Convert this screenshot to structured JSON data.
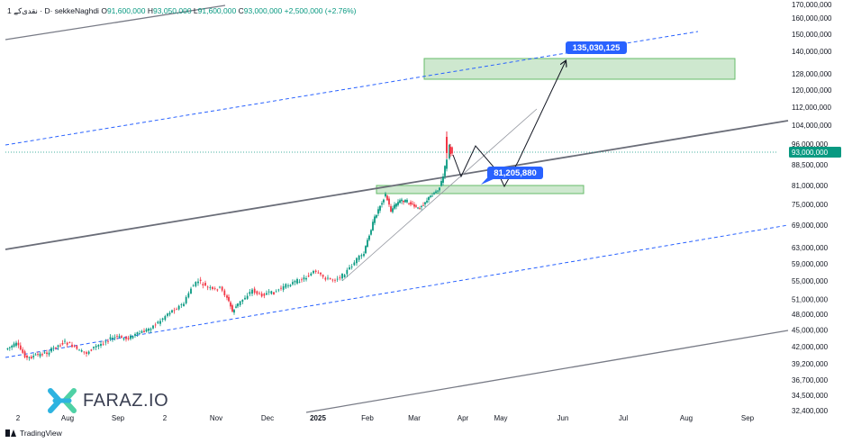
{
  "header": {
    "symbol": "1 نقدی‌کے ‎· D· sekkeNaghdi",
    "o_label": "O",
    "o_value": "91,600,000",
    "h_label": "H",
    "h_value": "93,050,000",
    "l_label": "L",
    "l_value": "91,600,000",
    "c_label": "C",
    "c_value": "93,000,000",
    "change": "+2,500,000 (+2.76%)"
  },
  "footer": {
    "brand": "TradingView"
  },
  "watermark": {
    "text": "FARAZ.IO"
  },
  "chart_data": {
    "type": "candlestick",
    "colors": {
      "up": "#089981",
      "down": "#f23645",
      "zone": "#a5d6a7",
      "label": "#2962ff",
      "channel": "#787b86",
      "dashed": "#2962ff"
    },
    "y_axis": {
      "ticks": [
        32400000,
        34500000,
        36700000,
        39200000,
        42000000,
        45000000,
        48000000,
        51000000,
        55000000,
        59000000,
        63000000,
        69000000,
        75000000,
        81000000,
        88500000,
        96000000,
        104000000,
        112000000,
        120000000,
        128000000,
        140000000,
        150000000,
        160000000,
        170000000
      ],
      "labels": [
        "32,400,000",
        "34,500,000",
        "36,700,000",
        "39,200,000",
        "42,000,000",
        "45,000,000",
        "48,000,000",
        "51,000,000",
        "55,000,000",
        "59,000,000",
        "63,000,000",
        "69,000,000",
        "75,000,000",
        "81,000,000",
        "88,500,000",
        "96,000,000",
        "104,000,000",
        "112,000,000",
        "120,000,000",
        "128,000,000",
        "140,000,000",
        "150,000,000",
        "160,000,000",
        "170,000,000"
      ],
      "last_price": 93000000,
      "last_price_label": "93,000,000"
    },
    "x_axis": {
      "labels": [
        "2",
        "Aug",
        "Sep",
        "2",
        "Nov",
        "Dec",
        "2025",
        "Feb",
        "Mar",
        "Apr",
        "May",
        "Jun",
        "Jul",
        "Aug",
        "Sep"
      ],
      "positions": [
        20,
        75,
        131,
        183,
        240,
        297,
        353,
        408,
        460,
        514,
        556,
        625,
        692,
        762,
        830
      ]
    },
    "annotations": [
      {
        "name": "target-label",
        "text": "135,030,125"
      },
      {
        "name": "support-label",
        "text": "81,205,880"
      }
    ]
  }
}
